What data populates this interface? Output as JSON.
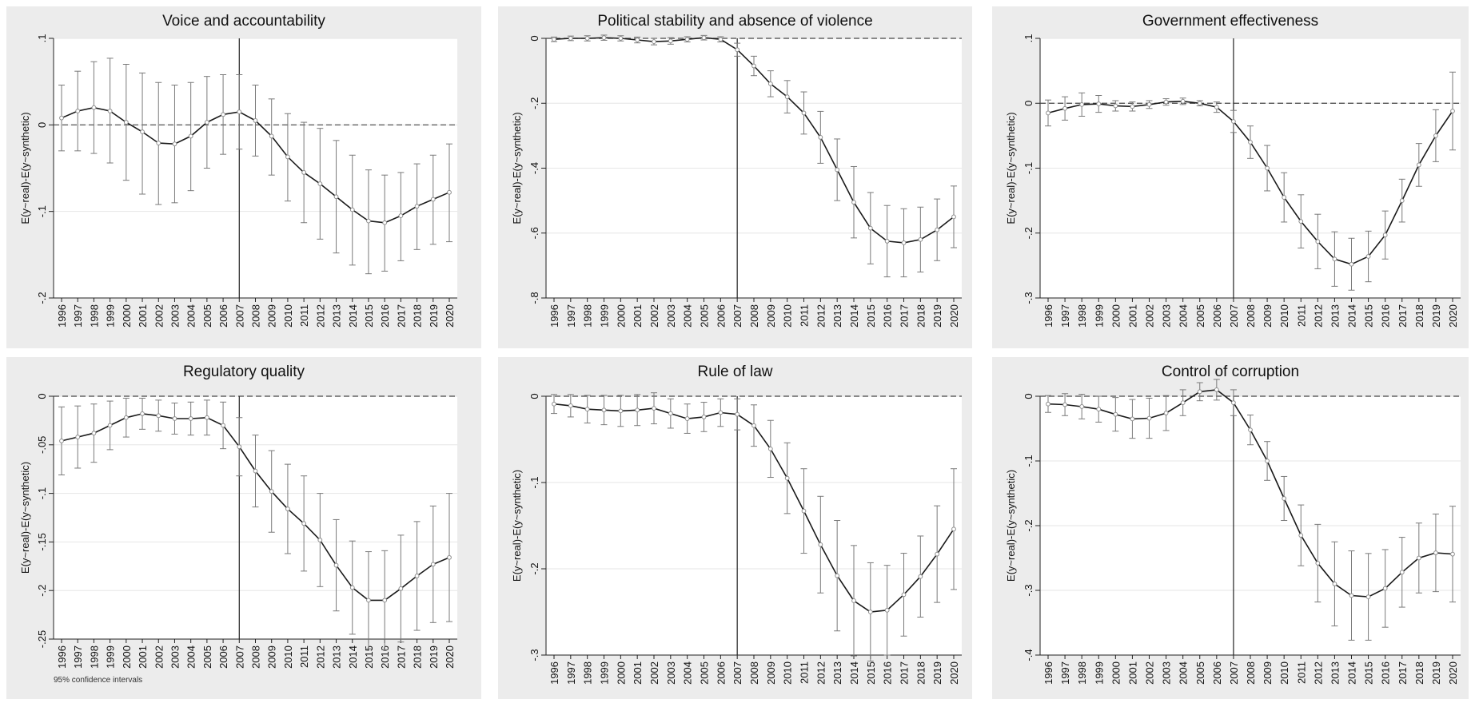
{
  "figure": {
    "footnote": "95% confidence intervals",
    "colors": {
      "panel_bg": "#ececec",
      "plot_bg": "#ffffff",
      "grid": "#e6e6e6",
      "line": "#1a1a1a",
      "ci": "#7a7a7a",
      "marker": "#8c8c8c",
      "ref_line": "#444444"
    }
  },
  "chart_data": [
    {
      "type": "line",
      "title": "Voice and accountability",
      "xlabel": "",
      "ylabel": "E(y~real)-E(y~synthetic)",
      "x": [
        1996,
        1997,
        1998,
        1999,
        2000,
        2001,
        2002,
        2003,
        2004,
        2005,
        2006,
        2007,
        2008,
        2009,
        2010,
        2011,
        2012,
        2013,
        2014,
        2015,
        2016,
        2017,
        2018,
        2019,
        2020
      ],
      "ylim": [
        -0.2,
        0.1
      ],
      "yticks": [
        0.1,
        0,
        -0.1,
        -0.2
      ],
      "ytick_labels": [
        ".1",
        "0",
        "-.1",
        "-.2"
      ],
      "vline_x": 2007,
      "hline_y": 0,
      "grid": true,
      "series": [
        {
          "values": [
            0.008,
            0.016,
            0.02,
            0.016,
            0.003,
            -0.008,
            -0.021,
            -0.022,
            -0.013,
            0.003,
            0.012,
            0.015,
            0.005,
            -0.013,
            -0.037,
            -0.055,
            -0.068,
            -0.083,
            -0.098,
            -0.111,
            -0.113,
            -0.105,
            -0.094,
            -0.086,
            -0.078
          ],
          "ci_low": [
            -0.03,
            -0.03,
            -0.033,
            -0.044,
            -0.064,
            -0.08,
            -0.092,
            -0.09,
            -0.076,
            -0.05,
            -0.034,
            -0.028,
            -0.036,
            -0.058,
            -0.088,
            -0.113,
            -0.132,
            -0.148,
            -0.162,
            -0.172,
            -0.169,
            -0.157,
            -0.144,
            -0.138,
            -0.135
          ],
          "ci_high": [
            0.046,
            0.062,
            0.073,
            0.077,
            0.07,
            0.06,
            0.049,
            0.046,
            0.049,
            0.056,
            0.058,
            0.058,
            0.046,
            0.03,
            0.013,
            0.003,
            -0.004,
            -0.018,
            -0.035,
            -0.052,
            -0.058,
            -0.055,
            -0.045,
            -0.035,
            -0.022
          ]
        }
      ]
    },
    {
      "type": "line",
      "title": "Political stability and absence of violence",
      "xlabel": "",
      "ylabel": "E(y~real)-E(y~synthetic)",
      "x": [
        1996,
        1997,
        1998,
        1999,
        2000,
        2001,
        2002,
        2003,
        2004,
        2005,
        2006,
        2007,
        2008,
        2009,
        2010,
        2011,
        2012,
        2013,
        2014,
        2015,
        2016,
        2017,
        2018,
        2019,
        2020
      ],
      "ylim": [
        -0.8,
        0
      ],
      "yticks": [
        0,
        -0.2,
        -0.4,
        -0.6,
        -0.8
      ],
      "ytick_labels": [
        "0",
        "-.2",
        "-.4",
        "-.6",
        "-.8"
      ],
      "vline_x": 2007,
      "hline_y": 0,
      "grid": true,
      "series": [
        {
          "values": [
            -0.003,
            0.0,
            0.0,
            0.002,
            0.0,
            -0.005,
            -0.01,
            -0.008,
            -0.003,
            0.002,
            -0.003,
            -0.035,
            -0.085,
            -0.14,
            -0.18,
            -0.23,
            -0.305,
            -0.405,
            -0.505,
            -0.585,
            -0.625,
            -0.63,
            -0.62,
            -0.59,
            -0.55
          ],
          "ci_low": [
            -0.01,
            -0.007,
            -0.008,
            -0.006,
            -0.008,
            -0.014,
            -0.02,
            -0.018,
            -0.011,
            -0.005,
            -0.011,
            -0.055,
            -0.115,
            -0.18,
            -0.23,
            -0.295,
            -0.385,
            -0.5,
            -0.615,
            -0.695,
            -0.735,
            -0.735,
            -0.72,
            -0.685,
            -0.645
          ],
          "ci_high": [
            0.004,
            0.007,
            0.008,
            0.01,
            0.008,
            0.004,
            0.0,
            0.002,
            0.005,
            0.009,
            0.005,
            -0.015,
            -0.055,
            -0.1,
            -0.13,
            -0.165,
            -0.225,
            -0.31,
            -0.395,
            -0.475,
            -0.515,
            -0.525,
            -0.52,
            -0.495,
            -0.455
          ]
        }
      ]
    },
    {
      "type": "line",
      "title": "Government effectiveness",
      "xlabel": "",
      "ylabel": "E(y~real)-E(y~synthetic)",
      "x": [
        1996,
        1997,
        1998,
        1999,
        2000,
        2001,
        2002,
        2003,
        2004,
        2005,
        2006,
        2007,
        2008,
        2009,
        2010,
        2011,
        2012,
        2013,
        2014,
        2015,
        2016,
        2017,
        2018,
        2019,
        2020
      ],
      "ylim": [
        -0.3,
        0.1
      ],
      "yticks": [
        0.1,
        0,
        -0.1,
        -0.2,
        -0.3
      ],
      "ytick_labels": [
        ".1",
        "0",
        "-.1",
        "-.2",
        "-.3"
      ],
      "vline_x": 2007,
      "hline_y": 0,
      "grid": true,
      "series": [
        {
          "values": [
            -0.015,
            -0.008,
            -0.002,
            -0.001,
            -0.004,
            -0.005,
            -0.002,
            0.002,
            0.003,
            0.0,
            -0.006,
            -0.028,
            -0.06,
            -0.1,
            -0.145,
            -0.182,
            -0.213,
            -0.24,
            -0.248,
            -0.236,
            -0.203,
            -0.15,
            -0.095,
            -0.05,
            -0.012
          ],
          "ci_low": [
            -0.035,
            -0.026,
            -0.02,
            -0.014,
            -0.012,
            -0.012,
            -0.008,
            -0.003,
            -0.002,
            -0.004,
            -0.014,
            -0.045,
            -0.085,
            -0.135,
            -0.183,
            -0.223,
            -0.255,
            -0.282,
            -0.288,
            -0.275,
            -0.24,
            -0.183,
            -0.128,
            -0.09,
            -0.072
          ],
          "ci_high": [
            0.005,
            0.01,
            0.016,
            0.012,
            0.004,
            0.002,
            0.004,
            0.007,
            0.008,
            0.004,
            0.002,
            -0.011,
            -0.035,
            -0.065,
            -0.107,
            -0.141,
            -0.171,
            -0.198,
            -0.208,
            -0.197,
            -0.166,
            -0.117,
            -0.062,
            -0.01,
            0.048
          ]
        }
      ]
    },
    {
      "type": "line",
      "title": "Regulatory quality",
      "xlabel": "",
      "ylabel": "E(y~real)-E(y~synthetic)",
      "x": [
        1996,
        1997,
        1998,
        1999,
        2000,
        2001,
        2002,
        2003,
        2004,
        2005,
        2006,
        2007,
        2008,
        2009,
        2010,
        2011,
        2012,
        2013,
        2014,
        2015,
        2016,
        2017,
        2018,
        2019,
        2020
      ],
      "ylim": [
        -0.25,
        0
      ],
      "yticks": [
        0,
        -0.05,
        -0.1,
        -0.15,
        -0.2,
        -0.25
      ],
      "ytick_labels": [
        "0",
        "-.05",
        "-.1",
        "-.15",
        "-.2",
        "-.25"
      ],
      "vline_x": 2007,
      "hline_y": 0,
      "grid": true,
      "series": [
        {
          "values": [
            -0.046,
            -0.042,
            -0.038,
            -0.03,
            -0.022,
            -0.018,
            -0.02,
            -0.023,
            -0.023,
            -0.022,
            -0.03,
            -0.052,
            -0.077,
            -0.098,
            -0.116,
            -0.131,
            -0.148,
            -0.174,
            -0.197,
            -0.21,
            -0.21,
            -0.198,
            -0.185,
            -0.173,
            -0.166
          ],
          "ci_low": [
            -0.081,
            -0.074,
            -0.068,
            -0.055,
            -0.042,
            -0.034,
            -0.036,
            -0.039,
            -0.04,
            -0.04,
            -0.054,
            -0.082,
            -0.114,
            -0.14,
            -0.162,
            -0.18,
            -0.196,
            -0.221,
            -0.245,
            -0.26,
            -0.261,
            -0.253,
            -0.241,
            -0.233,
            -0.232
          ],
          "ci_high": [
            -0.011,
            -0.01,
            -0.008,
            -0.005,
            -0.002,
            -0.002,
            -0.004,
            -0.007,
            -0.006,
            -0.004,
            -0.006,
            -0.022,
            -0.04,
            -0.056,
            -0.07,
            -0.082,
            -0.1,
            -0.127,
            -0.149,
            -0.16,
            -0.159,
            -0.143,
            -0.129,
            -0.113,
            -0.1
          ]
        }
      ]
    },
    {
      "type": "line",
      "title": "Rule of law",
      "xlabel": "",
      "ylabel": "E(y~real)-E(y~synthetic)",
      "x": [
        1996,
        1997,
        1998,
        1999,
        2000,
        2001,
        2002,
        2003,
        2004,
        2005,
        2006,
        2007,
        2008,
        2009,
        2010,
        2011,
        2012,
        2013,
        2014,
        2015,
        2016,
        2017,
        2018,
        2019,
        2020
      ],
      "ylim": [
        -0.3,
        0
      ],
      "yticks": [
        0,
        -0.1,
        -0.2,
        -0.3
      ],
      "ytick_labels": [
        "0",
        "-.1",
        "-.2",
        "-.3"
      ],
      "vline_x": 2007,
      "hline_y": 0,
      "grid": true,
      "series": [
        {
          "values": [
            -0.009,
            -0.011,
            -0.015,
            -0.016,
            -0.017,
            -0.016,
            -0.014,
            -0.02,
            -0.026,
            -0.024,
            -0.019,
            -0.021,
            -0.034,
            -0.061,
            -0.095,
            -0.133,
            -0.172,
            -0.208,
            -0.237,
            -0.25,
            -0.248,
            -0.23,
            -0.209,
            -0.183,
            -0.154
          ],
          "ci_low": [
            -0.02,
            -0.024,
            -0.031,
            -0.033,
            -0.035,
            -0.034,
            -0.032,
            -0.037,
            -0.043,
            -0.041,
            -0.035,
            -0.039,
            -0.058,
            -0.094,
            -0.136,
            -0.182,
            -0.228,
            -0.272,
            -0.301,
            -0.307,
            -0.3,
            -0.278,
            -0.256,
            -0.239,
            -0.224
          ],
          "ci_high": [
            0.002,
            0.002,
            0.001,
            0.001,
            0.001,
            0.002,
            0.004,
            -0.003,
            -0.009,
            -0.007,
            -0.003,
            -0.003,
            -0.01,
            -0.028,
            -0.054,
            -0.084,
            -0.116,
            -0.144,
            -0.173,
            -0.193,
            -0.196,
            -0.182,
            -0.162,
            -0.127,
            -0.084
          ]
        }
      ]
    },
    {
      "type": "line",
      "title": "Control of corruption",
      "xlabel": "",
      "ylabel": "E(y~real)-E(y~synthetic)",
      "x": [
        1996,
        1997,
        1998,
        1999,
        2000,
        2001,
        2002,
        2003,
        2004,
        2005,
        2006,
        2007,
        2008,
        2009,
        2010,
        2011,
        2012,
        2013,
        2014,
        2015,
        2016,
        2017,
        2018,
        2019,
        2020
      ],
      "ylim": [
        -0.4,
        0
      ],
      "yticks": [
        0,
        -0.1,
        -0.2,
        -0.3,
        -0.4
      ],
      "ytick_labels": [
        "0",
        "-.1",
        "-.2",
        "-.3",
        "-.4"
      ],
      "vline_x": 2007,
      "hline_y": 0,
      "grid": true,
      "series": [
        {
          "values": [
            -0.012,
            -0.013,
            -0.016,
            -0.02,
            -0.028,
            -0.035,
            -0.034,
            -0.026,
            -0.01,
            0.007,
            0.01,
            -0.01,
            -0.052,
            -0.1,
            -0.158,
            -0.215,
            -0.258,
            -0.29,
            -0.308,
            -0.31,
            -0.297,
            -0.272,
            -0.25,
            -0.242,
            -0.244
          ],
          "ci_low": [
            -0.025,
            -0.03,
            -0.035,
            -0.04,
            -0.054,
            -0.065,
            -0.065,
            -0.053,
            -0.03,
            -0.007,
            -0.006,
            -0.03,
            -0.075,
            -0.13,
            -0.192,
            -0.262,
            -0.318,
            -0.355,
            -0.377,
            -0.377,
            -0.357,
            -0.326,
            -0.304,
            -0.302,
            -0.318
          ],
          "ci_high": [
            0.001,
            0.004,
            0.003,
            0.0,
            -0.002,
            -0.005,
            -0.003,
            0.001,
            0.01,
            0.021,
            0.026,
            0.01,
            -0.029,
            -0.07,
            -0.124,
            -0.168,
            -0.198,
            -0.225,
            -0.239,
            -0.243,
            -0.237,
            -0.218,
            -0.196,
            -0.182,
            -0.17
          ]
        }
      ]
    }
  ]
}
